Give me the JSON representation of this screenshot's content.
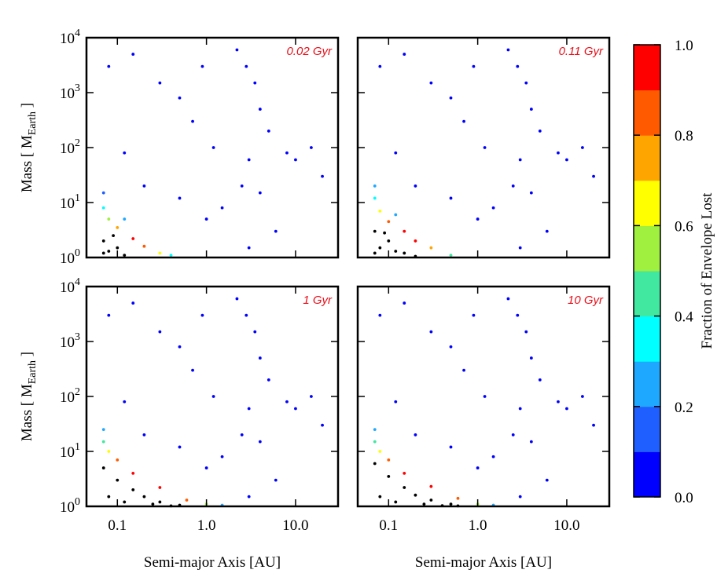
{
  "chart_data": [
    {
      "type": "scatter",
      "annotation": "0.02 Gyr",
      "xlog": true,
      "ylog": true,
      "xlim": [
        0.045,
        30
      ],
      "ylim": [
        1,
        10000
      ],
      "xticks": [
        0.1,
        1,
        10
      ],
      "show_xtick_labels": false,
      "yticks": [
        {
          "value": 1,
          "label": "10",
          "exponent": "0"
        },
        {
          "value": 10,
          "label": "10",
          "exponent": "1"
        },
        {
          "value": 100,
          "label": "10",
          "exponent": "2"
        },
        {
          "value": 1000,
          "label": "10",
          "exponent": "3"
        },
        {
          "value": 10000,
          "label": "10",
          "exponent": "4"
        }
      ],
      "show_ytick_labels": true,
      "y_label": "Mass  [ M",
      "y_label_sub": "Earth",
      "y_label_end": " ]",
      "series": [
        {
          "x": [
            0.08,
            0.15,
            0.3,
            0.5,
            0.9,
            2.2,
            2.8,
            3.5,
            4,
            5,
            8,
            10,
            15,
            20,
            3,
            2.5,
            1.5,
            1,
            0.5,
            0.2,
            0.7,
            3,
            6,
            4,
            1.2,
            0.12,
            0.07,
            0.07,
            0.08,
            0.1,
            0.15,
            0.2,
            0.3,
            0.4,
            0.12
          ],
          "values": [
            3000,
            5000,
            1500,
            800,
            3000,
            6000,
            3000,
            1500,
            500,
            200,
            80,
            60,
            100,
            30,
            60,
            20,
            8,
            5,
            12,
            20,
            300,
            1.5,
            3,
            15,
            100,
            80,
            15,
            8,
            5,
            3.5,
            2.2,
            1.6,
            1.2,
            1.1,
            5
          ],
          "c": [
            0.02,
            0,
            0,
            0,
            0,
            0,
            0,
            0,
            0,
            0.02,
            0,
            0,
            0,
            0,
            0,
            0,
            0,
            0.05,
            0.05,
            0.05,
            0,
            0,
            0,
            0,
            0,
            0,
            0.15,
            0.3,
            0.5,
            0.7,
            0.9,
            0.85,
            0.6,
            0.35,
            0.2
          ]
        },
        {
          "color": "#000000",
          "x": [
            0.07,
            0.08,
            0.1,
            0.12,
            0.09,
            0.07
          ],
          "values": [
            2,
            1.3,
            1.5,
            1.1,
            2.5,
            1.2
          ]
        }
      ]
    },
    {
      "type": "scatter",
      "annotation": "0.11 Gyr",
      "xlog": true,
      "ylog": true,
      "xlim": [
        0.045,
        30
      ],
      "ylim": [
        1,
        10000
      ],
      "xticks": [
        0.1,
        1,
        10
      ],
      "show_xtick_labels": false,
      "yticks": [
        1,
        10,
        100,
        1000,
        10000
      ],
      "show_ytick_labels": false,
      "series": [
        {
          "x": [
            0.08,
            0.15,
            0.3,
            0.5,
            0.9,
            2.2,
            2.8,
            3.5,
            4,
            5,
            8,
            10,
            15,
            20,
            3,
            2.5,
            1.5,
            1,
            0.5,
            0.2,
            0.7,
            3,
            6,
            4,
            1.2,
            0.12,
            0.07,
            0.07,
            0.08,
            0.1,
            0.15,
            0.2,
            0.3,
            0.5,
            0.12
          ],
          "values": [
            3000,
            5000,
            1500,
            800,
            3000,
            6000,
            3000,
            1500,
            500,
            200,
            80,
            60,
            100,
            30,
            60,
            20,
            8,
            5,
            12,
            20,
            300,
            1.5,
            3,
            15,
            100,
            80,
            20,
            12,
            7,
            4.5,
            3,
            2,
            1.5,
            1.1,
            6
          ],
          "c": [
            0.02,
            0,
            0,
            0,
            0,
            0,
            0,
            0,
            0,
            0.02,
            0,
            0,
            0,
            0,
            0,
            0,
            0,
            0.05,
            0.05,
            0.05,
            0,
            0,
            0,
            0,
            0,
            0,
            0.25,
            0.35,
            0.6,
            0.8,
            0.95,
            0.9,
            0.75,
            0.4,
            0.25
          ]
        },
        {
          "color": "#000000",
          "x": [
            0.07,
            0.08,
            0.1,
            0.12,
            0.15,
            0.2,
            0.09,
            0.07
          ],
          "values": [
            3,
            1.5,
            2,
            1.3,
            1.2,
            1.05,
            2.8,
            1.2
          ]
        }
      ]
    },
    {
      "type": "scatter",
      "annotation": "1 Gyr",
      "xlog": true,
      "ylog": true,
      "xlim": [
        0.045,
        30
      ],
      "ylim": [
        1,
        10000
      ],
      "xticks": [
        {
          "value": 0.1,
          "label": "0.1"
        },
        {
          "value": 1,
          "label": "1.0"
        },
        {
          "value": 10,
          "label": "10.0"
        }
      ],
      "show_xtick_labels": true,
      "yticks": [
        {
          "value": 1,
          "label": "10",
          "exponent": "0"
        },
        {
          "value": 10,
          "label": "10",
          "exponent": "1"
        },
        {
          "value": 100,
          "label": "10",
          "exponent": "2"
        },
        {
          "value": 1000,
          "label": "10",
          "exponent": "3"
        },
        {
          "value": 10000,
          "label": "10",
          "exponent": "4"
        }
      ],
      "show_ytick_labels": true,
      "x_label": "Semi-major Axis  [AU]",
      "y_label": "Mass  [ M",
      "y_label_sub": "Earth",
      "y_label_end": " ]",
      "series": [
        {
          "x": [
            0.08,
            0.15,
            0.3,
            0.5,
            0.9,
            2.2,
            2.8,
            3.5,
            4,
            5,
            8,
            10,
            15,
            20,
            3,
            2.5,
            1.5,
            1,
            0.5,
            0.2,
            0.7,
            3,
            6,
            4,
            1.2,
            0.12,
            0.07,
            0.07,
            0.08,
            0.1,
            0.15,
            0.3,
            0.6,
            1,
            1.5
          ],
          "values": [
            3000,
            5000,
            1500,
            800,
            3000,
            6000,
            3000,
            1500,
            500,
            200,
            80,
            60,
            100,
            30,
            60,
            20,
            8,
            5,
            12,
            20,
            300,
            1.5,
            3,
            15,
            100,
            80,
            25,
            15,
            10,
            7,
            4,
            2.2,
            1.3,
            1.1,
            1.05
          ],
          "c": [
            0.02,
            0,
            0,
            0,
            0,
            0,
            0,
            0,
            0,
            0.02,
            0,
            0,
            0,
            0,
            0,
            0,
            0,
            0.05,
            0.05,
            0.05,
            0,
            0,
            0,
            0,
            0,
            0,
            0.25,
            0.45,
            0.65,
            0.85,
            0.95,
            0.9,
            0.8,
            0.5,
            0.2
          ]
        },
        {
          "color": "#000000",
          "x": [
            0.07,
            0.1,
            0.15,
            0.2,
            0.3,
            0.5,
            0.08,
            0.12,
            0.25,
            0.4
          ],
          "values": [
            5,
            3,
            2,
            1.5,
            1.2,
            1.05,
            1.5,
            1.2,
            1.1,
            1.02
          ]
        }
      ]
    },
    {
      "type": "scatter",
      "annotation": "10 Gyr",
      "xlog": true,
      "ylog": true,
      "xlim": [
        0.045,
        30
      ],
      "ylim": [
        1,
        10000
      ],
      "xticks": [
        {
          "value": 0.1,
          "label": "0.1"
        },
        {
          "value": 1,
          "label": "1.0"
        },
        {
          "value": 10,
          "label": "10.0"
        }
      ],
      "show_xtick_labels": true,
      "yticks": [
        1,
        10,
        100,
        1000,
        10000
      ],
      "show_ytick_labels": false,
      "x_label": "Semi-major Axis  [AU]",
      "series": [
        {
          "x": [
            0.08,
            0.15,
            0.3,
            0.5,
            0.9,
            2.2,
            2.8,
            3.5,
            4,
            5,
            8,
            10,
            15,
            20,
            3,
            2.5,
            1.5,
            1,
            0.5,
            0.2,
            0.7,
            3,
            6,
            4,
            1.2,
            0.12,
            0.07,
            0.07,
            0.08,
            0.1,
            0.15,
            0.3,
            0.6,
            1,
            1.5
          ],
          "values": [
            3000,
            5000,
            1500,
            800,
            3000,
            6000,
            3000,
            1500,
            500,
            200,
            80,
            60,
            100,
            30,
            60,
            20,
            8,
            5,
            12,
            20,
            300,
            1.5,
            3,
            15,
            100,
            80,
            25,
            15,
            10,
            7,
            4,
            2.3,
            1.4,
            1.1,
            1.05
          ],
          "c": [
            0.02,
            0,
            0,
            0,
            0,
            0,
            0,
            0,
            0,
            0.02,
            0,
            0,
            0,
            0,
            0,
            0,
            0,
            0.05,
            0.05,
            0.05,
            0,
            0,
            0,
            0,
            0,
            0,
            0.25,
            0.45,
            0.65,
            0.85,
            0.95,
            0.9,
            0.8,
            0.5,
            0.2
          ]
        },
        {
          "color": "#000000",
          "x": [
            0.07,
            0.1,
            0.15,
            0.2,
            0.3,
            0.5,
            0.08,
            0.12,
            0.25,
            0.4,
            0.6
          ],
          "values": [
            6,
            3.5,
            2.2,
            1.6,
            1.3,
            1.1,
            1.5,
            1.2,
            1.1,
            1.03,
            1.02
          ]
        }
      ]
    }
  ],
  "colorbar": {
    "label": "Fraction of Envelope Lost",
    "lim": [
      0,
      1
    ],
    "ticks": [
      {
        "value": 0,
        "label": "0.0"
      },
      {
        "value": 0.2,
        "label": "0.2"
      },
      {
        "value": 0.4,
        "label": "0.4"
      },
      {
        "value": 0.6,
        "label": "0.6"
      },
      {
        "value": 0.8,
        "label": "0.8"
      },
      {
        "value": 1,
        "label": "1.0"
      }
    ],
    "colors": [
      "#0000ff",
      "#1f5fff",
      "#1fa8ff",
      "#00ffff",
      "#40e8a0",
      "#a0f040",
      "#ffff00",
      "#ffa500",
      "#ff5a00",
      "#ff0000"
    ]
  }
}
